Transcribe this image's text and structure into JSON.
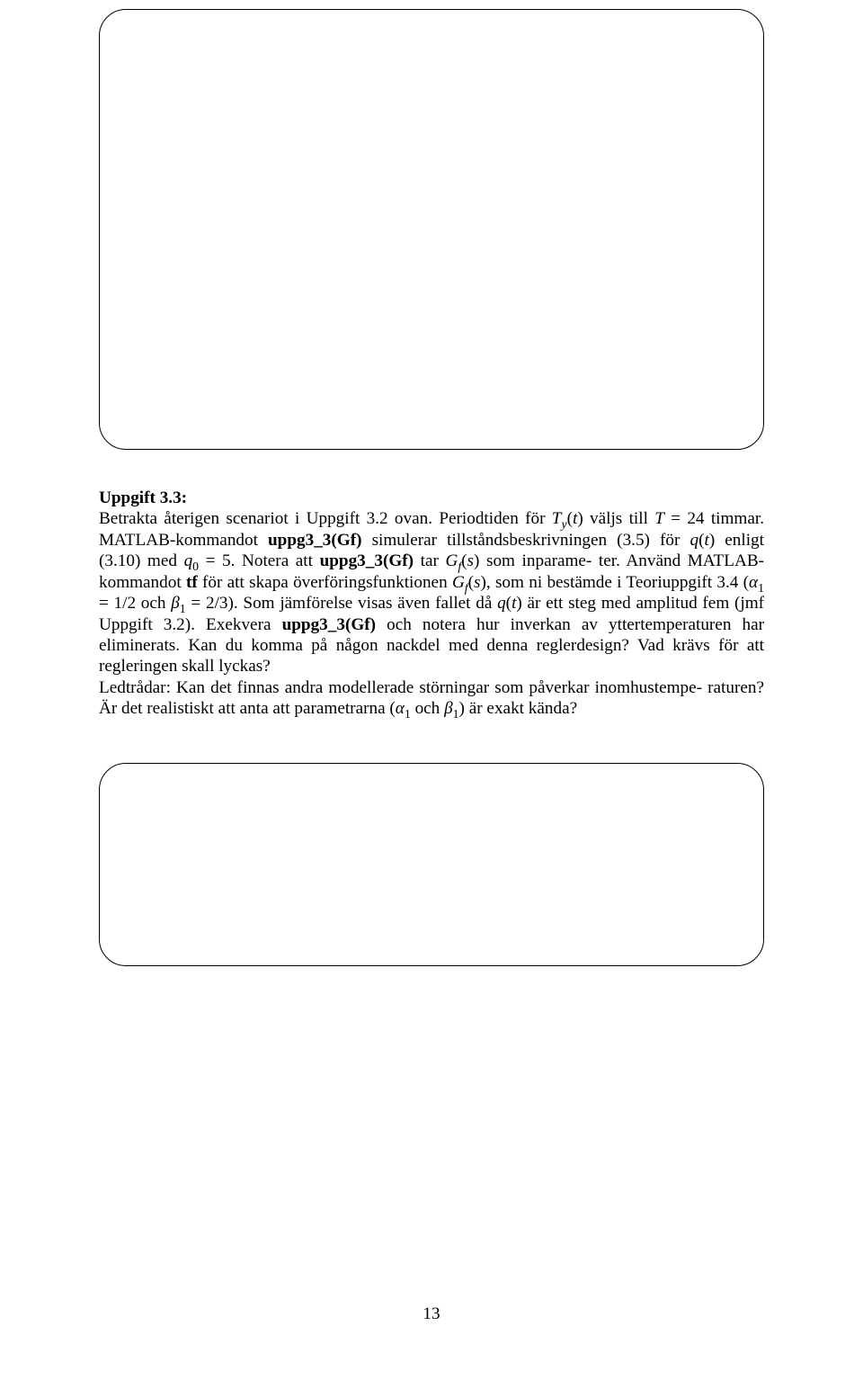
{
  "heading": "Uppgift 3.3:",
  "p1a": "Betrakta återigen scenariot i Uppgift 3.2 ovan. Periodtiden för ",
  "Ty": "T",
  "Ty_sub": "y",
  "p1b": "(",
  "p1c": "t",
  "p1d": ") väljs till ",
  "T1": "T",
  "eq24": " = 24",
  "p2a": "timmar. MATLAB-kommandot ",
  "cmd1": "uppg3_3(Gf)",
  "p2b": " simulerar tillståndsbeskrivningen (3.5)",
  "p3a": "för ",
  "q1": "q",
  "p3b": "(",
  "t1": "t",
  "p3c": ") enligt (3.10) med ",
  "q0": "q",
  "q0s": "0",
  "p3d": " = 5. Notera att ",
  "cmd2": "uppg3_3(Gf)",
  "p3e": " tar ",
  "Gf1": "G",
  "Gf1s": "f",
  "p3f": "(",
  "s1": "s",
  "p3g": ") som inparame-",
  "p4a": "ter. Använd MATLAB-kommandot ",
  "tf": "tf",
  "p4b": " för att skapa överföringsfunktionen ",
  "Gf2": "G",
  "Gf2s": "f",
  "p4c": "(",
  "s2": "s",
  "p4d": "), som ni",
  "p5a": "bestämde i Teoriuppgift 3.4 (",
  "alpha1": "α",
  "a1s": "1",
  "p5b": " = 1/2 och ",
  "beta1": "β",
  "b1s": "1",
  "p5c": " = 2/3). Som jämförelse visas även fallet då",
  "p6a": "",
  "q2": "q",
  "p6b": "(",
  "t2": "t",
  "p6c": ") är ett steg med amplitud fem (jmf Uppgift 3.2). Exekvera ",
  "cmd3": "uppg3_3(Gf)",
  "p6d": " och notera",
  "p7": "hur inverkan av yttertemperaturen har eliminerats. Kan du komma på någon nackdel",
  "p8": "med denna reglerdesign? Vad krävs för att regleringen skall lyckas?",
  "p9": "Ledtrådar: Kan det finnas andra modellerade störningar som påverkar inomhustempe-",
  "p10a": "raturen? Är det realistiskt att anta att parametrarna (",
  "alpha2": "α",
  "a2s": "1",
  "p10b": " och ",
  "beta2": "β",
  "b2s": "1",
  "p10c": ") är exakt kända?",
  "pagenum": "13"
}
